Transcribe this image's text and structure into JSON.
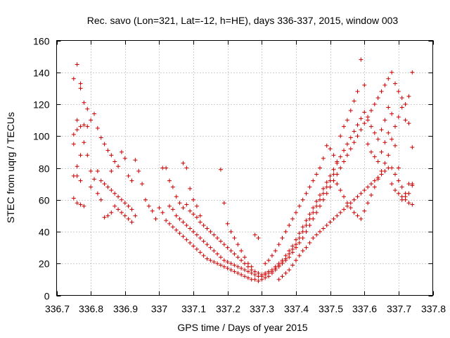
{
  "chart_data": {
    "type": "scatter",
    "title": "Rec. savo (Lon=321, Lat=-12, h=HE), days 336-337, 2015, window 003",
    "xlabel": "GPS time / Days of year 2015",
    "ylabel": "STEC from uqrg / TECUs",
    "xlim": [
      336.7,
      337.8
    ],
    "ylim": [
      0,
      160
    ],
    "x_ticks": [
      "336.7",
      "336.8",
      "336.9",
      "337",
      "337.1",
      "337.2",
      "337.3",
      "337.4",
      "337.5",
      "337.6",
      "337.7",
      "337.8"
    ],
    "y_ticks": [
      "0",
      "20",
      "40",
      "60",
      "80",
      "100",
      "120",
      "140",
      "160"
    ],
    "grid": true,
    "marker": "+",
    "color": "#cc0000",
    "points": [
      [
        336.75,
        136
      ],
      [
        336.76,
        145
      ],
      [
        336.77,
        133
      ],
      [
        336.77,
        130
      ],
      [
        336.75,
        101
      ],
      [
        336.75,
        95
      ],
      [
        336.76,
        110
      ],
      [
        336.76,
        104
      ],
      [
        336.77,
        106
      ],
      [
        336.77,
        88
      ],
      [
        336.78,
        121
      ],
      [
        336.78,
        107
      ],
      [
        336.79,
        117
      ],
      [
        336.79,
        106
      ],
      [
        336.8,
        110
      ],
      [
        336.81,
        114
      ],
      [
        336.82,
        105
      ],
      [
        336.83,
        99
      ],
      [
        336.84,
        95
      ],
      [
        336.85,
        91
      ],
      [
        336.86,
        88
      ],
      [
        336.76,
        81
      ],
      [
        336.76,
        75
      ],
      [
        336.77,
        72
      ],
      [
        336.75,
        75
      ],
      [
        336.75,
        61
      ],
      [
        336.76,
        58
      ],
      [
        336.77,
        57
      ],
      [
        336.78,
        56
      ],
      [
        336.78,
        96
      ],
      [
        336.79,
        88
      ],
      [
        336.8,
        78
      ],
      [
        336.8,
        68
      ],
      [
        336.81,
        73
      ],
      [
        336.82,
        64
      ],
      [
        336.83,
        60
      ],
      [
        336.84,
        49
      ],
      [
        336.85,
        50
      ],
      [
        336.86,
        52
      ],
      [
        336.82,
        78
      ],
      [
        336.83,
        72
      ],
      [
        336.84,
        70
      ],
      [
        336.85,
        68
      ],
      [
        336.86,
        66
      ],
      [
        336.87,
        64
      ],
      [
        336.88,
        62
      ],
      [
        336.89,
        60
      ],
      [
        336.9,
        58
      ],
      [
        336.91,
        56
      ],
      [
        336.92,
        54
      ],
      [
        336.86,
        78
      ],
      [
        336.87,
        84
      ],
      [
        336.88,
        81
      ],
      [
        336.89,
        90
      ],
      [
        336.9,
        86
      ],
      [
        336.91,
        75
      ],
      [
        336.92,
        72
      ],
      [
        336.93,
        85
      ],
      [
        336.94,
        78
      ],
      [
        336.87,
        56
      ],
      [
        336.88,
        54
      ],
      [
        336.89,
        52
      ],
      [
        336.9,
        50
      ],
      [
        336.91,
        48
      ],
      [
        336.92,
        46
      ],
      [
        336.93,
        50
      ],
      [
        336.95,
        70
      ],
      [
        336.96,
        60
      ],
      [
        336.97,
        56
      ],
      [
        336.98,
        53
      ],
      [
        336.99,
        48
      ],
      [
        337.0,
        55
      ],
      [
        337.01,
        52
      ],
      [
        337.02,
        47
      ],
      [
        337.03,
        45
      ],
      [
        337.04,
        43
      ],
      [
        337.05,
        41
      ],
      [
        337.06,
        39
      ],
      [
        337.07,
        37
      ],
      [
        337.08,
        35
      ],
      [
        337.09,
        33
      ],
      [
        337.1,
        31
      ],
      [
        337.11,
        29
      ],
      [
        337.12,
        27
      ],
      [
        337.13,
        25
      ],
      [
        337.14,
        23
      ],
      [
        337.15,
        22
      ],
      [
        337.16,
        21
      ],
      [
        337.17,
        20
      ],
      [
        337.18,
        19
      ],
      [
        337.19,
        18
      ],
      [
        337.2,
        17
      ],
      [
        337.21,
        16
      ],
      [
        337.22,
        15
      ],
      [
        337.23,
        14
      ],
      [
        337.24,
        13
      ],
      [
        337.25,
        12
      ],
      [
        337.26,
        11
      ],
      [
        337.27,
        10
      ],
      [
        337.28,
        10
      ],
      [
        337.29,
        9
      ],
      [
        337.3,
        10
      ],
      [
        337.31,
        11
      ],
      [
        337.32,
        12
      ],
      [
        337.33,
        14
      ],
      [
        337.34,
        16
      ],
      [
        337.35,
        18
      ],
      [
        337.36,
        20
      ],
      [
        337.37,
        22
      ],
      [
        337.38,
        24
      ],
      [
        337.39,
        27
      ],
      [
        337.4,
        30
      ],
      [
        337.41,
        33
      ],
      [
        337.42,
        36
      ],
      [
        337.43,
        40
      ],
      [
        337.44,
        44
      ],
      [
        337.45,
        48
      ],
      [
        337.46,
        52
      ],
      [
        337.47,
        56
      ],
      [
        337.48,
        60
      ],
      [
        337.49,
        64
      ],
      [
        337.5,
        68
      ],
      [
        337.51,
        72
      ],
      [
        337.52,
        76
      ],
      [
        337.53,
        80
      ],
      [
        337.54,
        84
      ],
      [
        337.55,
        88
      ],
      [
        337.56,
        92
      ],
      [
        337.57,
        96
      ],
      [
        337.58,
        100
      ],
      [
        337.59,
        104
      ],
      [
        337.6,
        108
      ],
      [
        337.61,
        112
      ],
      [
        337.62,
        116
      ],
      [
        337.63,
        120
      ],
      [
        337.64,
        124
      ],
      [
        337.65,
        128
      ],
      [
        337.66,
        132
      ],
      [
        337.67,
        136
      ],
      [
        337.68,
        140
      ],
      [
        337.69,
        133
      ],
      [
        337.7,
        128
      ],
      [
        337.71,
        124
      ],
      [
        337.72,
        120
      ],
      [
        337.73,
        125
      ],
      [
        337.74,
        140
      ],
      [
        337.01,
        80
      ],
      [
        337.02,
        80
      ],
      [
        337.03,
        72
      ],
      [
        337.04,
        68
      ],
      [
        337.05,
        62
      ],
      [
        337.06,
        58
      ],
      [
        337.07,
        55
      ],
      [
        337.08,
        57
      ],
      [
        337.09,
        53
      ],
      [
        337.1,
        51
      ],
      [
        337.11,
        49
      ],
      [
        337.12,
        46
      ],
      [
        337.13,
        44
      ],
      [
        337.14,
        42
      ],
      [
        337.15,
        40
      ],
      [
        337.16,
        38
      ],
      [
        337.17,
        36
      ],
      [
        337.18,
        34
      ],
      [
        337.19,
        32
      ],
      [
        337.2,
        30
      ],
      [
        337.21,
        28
      ],
      [
        337.22,
        26
      ],
      [
        337.23,
        24
      ],
      [
        337.24,
        22
      ],
      [
        337.25,
        20
      ],
      [
        337.26,
        18
      ],
      [
        337.27,
        16
      ],
      [
        337.28,
        15
      ],
      [
        337.29,
        14
      ],
      [
        337.3,
        13
      ],
      [
        337.31,
        14
      ],
      [
        337.32,
        15
      ],
      [
        337.33,
        16
      ],
      [
        337.34,
        18
      ],
      [
        337.35,
        20
      ],
      [
        337.36,
        22
      ],
      [
        337.37,
        25
      ],
      [
        337.38,
        28
      ],
      [
        337.39,
        31
      ],
      [
        337.4,
        35
      ],
      [
        337.41,
        39
      ],
      [
        337.42,
        43
      ],
      [
        337.43,
        47
      ],
      [
        337.44,
        51
      ],
      [
        337.45,
        55
      ],
      [
        337.46,
        59
      ],
      [
        337.47,
        63
      ],
      [
        337.48,
        67
      ],
      [
        337.49,
        71
      ],
      [
        337.5,
        75
      ],
      [
        337.51,
        79
      ],
      [
        337.52,
        83
      ],
      [
        337.53,
        87
      ],
      [
        337.54,
        91
      ],
      [
        337.55,
        95
      ],
      [
        337.56,
        99
      ],
      [
        337.57,
        103
      ],
      [
        337.58,
        107
      ],
      [
        337.59,
        111
      ],
      [
        337.6,
        115
      ],
      [
        337.61,
        110
      ],
      [
        337.62,
        106
      ],
      [
        337.63,
        102
      ],
      [
        337.64,
        98
      ],
      [
        337.65,
        104
      ],
      [
        337.66,
        110
      ],
      [
        337.67,
        118
      ],
      [
        337.68,
        114
      ],
      [
        337.69,
        106
      ],
      [
        337.7,
        112
      ],
      [
        337.71,
        118
      ],
      [
        337.72,
        110
      ],
      [
        337.73,
        108
      ],
      [
        337.74,
        93
      ],
      [
        337.03,
        56
      ],
      [
        337.04,
        54
      ],
      [
        337.05,
        50
      ],
      [
        337.06,
        48
      ],
      [
        337.07,
        46
      ],
      [
        337.08,
        44
      ],
      [
        337.09,
        42
      ],
      [
        337.1,
        40
      ],
      [
        337.11,
        38
      ],
      [
        337.12,
        36
      ],
      [
        337.13,
        34
      ],
      [
        337.14,
        32
      ],
      [
        337.15,
        30
      ],
      [
        337.16,
        28
      ],
      [
        337.17,
        26
      ],
      [
        337.18,
        24
      ],
      [
        337.19,
        22
      ],
      [
        337.2,
        21
      ],
      [
        337.21,
        20
      ],
      [
        337.22,
        19
      ],
      [
        337.23,
        18
      ],
      [
        337.24,
        17
      ],
      [
        337.25,
        16
      ],
      [
        337.26,
        15
      ],
      [
        337.27,
        14
      ],
      [
        337.28,
        13
      ],
      [
        337.29,
        12
      ],
      [
        337.3,
        12
      ],
      [
        337.31,
        13
      ],
      [
        337.32,
        14
      ],
      [
        337.33,
        15
      ],
      [
        337.34,
        17
      ],
      [
        337.35,
        19
      ],
      [
        337.36,
        21
      ],
      [
        337.37,
        23
      ],
      [
        337.38,
        26
      ],
      [
        337.39,
        29
      ],
      [
        337.4,
        32
      ],
      [
        337.41,
        36
      ],
      [
        337.42,
        40
      ],
      [
        337.43,
        44
      ],
      [
        337.44,
        48
      ],
      [
        337.45,
        52
      ],
      [
        337.46,
        56
      ],
      [
        337.47,
        60
      ],
      [
        337.48,
        64
      ],
      [
        337.49,
        68
      ],
      [
        337.5,
        72
      ],
      [
        337.51,
        76
      ],
      [
        337.52,
        70
      ],
      [
        337.53,
        66
      ],
      [
        337.54,
        62
      ],
      [
        337.55,
        58
      ],
      [
        337.56,
        55
      ],
      [
        337.57,
        52
      ],
      [
        337.58,
        50
      ],
      [
        337.59,
        48
      ],
      [
        337.6,
        53
      ],
      [
        337.61,
        58
      ],
      [
        337.62,
        63
      ],
      [
        337.63,
        68
      ],
      [
        337.64,
        73
      ],
      [
        337.65,
        78
      ],
      [
        337.66,
        83
      ],
      [
        337.67,
        88
      ],
      [
        337.68,
        80
      ],
      [
        337.69,
        76
      ],
      [
        337.7,
        72
      ],
      [
        337.71,
        68
      ],
      [
        337.72,
        64
      ],
      [
        337.73,
        70
      ],
      [
        337.74,
        57
      ],
      [
        337.07,
        83
      ],
      [
        337.08,
        80
      ],
      [
        337.09,
        67
      ],
      [
        337.1,
        60
      ],
      [
        337.11,
        56
      ],
      [
        337.12,
        50
      ],
      [
        337.18,
        79
      ],
      [
        337.19,
        58
      ],
      [
        337.2,
        45
      ],
      [
        337.21,
        40
      ],
      [
        337.22,
        36
      ],
      [
        337.23,
        32
      ],
      [
        337.24,
        28
      ],
      [
        337.25,
        24
      ],
      [
        337.26,
        20
      ],
      [
        337.27,
        18
      ],
      [
        337.28,
        38
      ],
      [
        337.29,
        36
      ],
      [
        337.31,
        20
      ],
      [
        337.32,
        22
      ],
      [
        337.33,
        25
      ],
      [
        337.34,
        28
      ],
      [
        337.35,
        32
      ],
      [
        337.36,
        36
      ],
      [
        337.37,
        40
      ],
      [
        337.38,
        44
      ],
      [
        337.39,
        48
      ],
      [
        337.4,
        52
      ],
      [
        337.41,
        56
      ],
      [
        337.42,
        60
      ],
      [
        337.43,
        64
      ],
      [
        337.44,
        68
      ],
      [
        337.45,
        72
      ],
      [
        337.46,
        76
      ],
      [
        337.47,
        80
      ],
      [
        337.48,
        86
      ],
      [
        337.49,
        94
      ],
      [
        337.5,
        92
      ],
      [
        337.51,
        88
      ],
      [
        337.52,
        84
      ],
      [
        337.53,
        100
      ],
      [
        337.54,
        106
      ],
      [
        337.55,
        110
      ],
      [
        337.56,
        116
      ],
      [
        337.57,
        122
      ],
      [
        337.58,
        128
      ],
      [
        337.59,
        148
      ],
      [
        337.6,
        132
      ],
      [
        337.61,
        95
      ],
      [
        337.62,
        90
      ],
      [
        337.63,
        87
      ],
      [
        337.64,
        84
      ],
      [
        337.65,
        90
      ],
      [
        337.66,
        96
      ],
      [
        337.67,
        102
      ],
      [
        337.68,
        98
      ],
      [
        337.69,
        94
      ],
      [
        337.7,
        80
      ],
      [
        337.71,
        62
      ],
      [
        337.72,
        60
      ],
      [
        337.73,
        58
      ],
      [
        337.74,
        70
      ],
      [
        337.35,
        10
      ],
      [
        337.36,
        12
      ],
      [
        337.37,
        14
      ],
      [
        337.38,
        16
      ],
      [
        337.39,
        19
      ],
      [
        337.4,
        22
      ],
      [
        337.41,
        25
      ],
      [
        337.42,
        28
      ],
      [
        337.43,
        30
      ],
      [
        337.44,
        33
      ],
      [
        337.45,
        36
      ],
      [
        337.46,
        38
      ],
      [
        337.47,
        40
      ],
      [
        337.48,
        42
      ],
      [
        337.49,
        44
      ],
      [
        337.5,
        46
      ],
      [
        337.51,
        48
      ],
      [
        337.52,
        50
      ],
      [
        337.53,
        52
      ],
      [
        337.54,
        54
      ],
      [
        337.55,
        56
      ],
      [
        337.56,
        58
      ],
      [
        337.57,
        60
      ],
      [
        337.58,
        62
      ],
      [
        337.59,
        64
      ],
      [
        337.6,
        66
      ],
      [
        337.61,
        68
      ],
      [
        337.62,
        70
      ],
      [
        337.63,
        72
      ],
      [
        337.64,
        74
      ],
      [
        337.65,
        76
      ],
      [
        337.66,
        78
      ],
      [
        337.67,
        80
      ],
      [
        337.68,
        70
      ],
      [
        337.69,
        66
      ],
      [
        337.7,
        64
      ],
      [
        337.71,
        60
      ],
      [
        337.72,
        62
      ],
      [
        337.73,
        64
      ],
      [
        337.74,
        69
      ]
    ]
  }
}
